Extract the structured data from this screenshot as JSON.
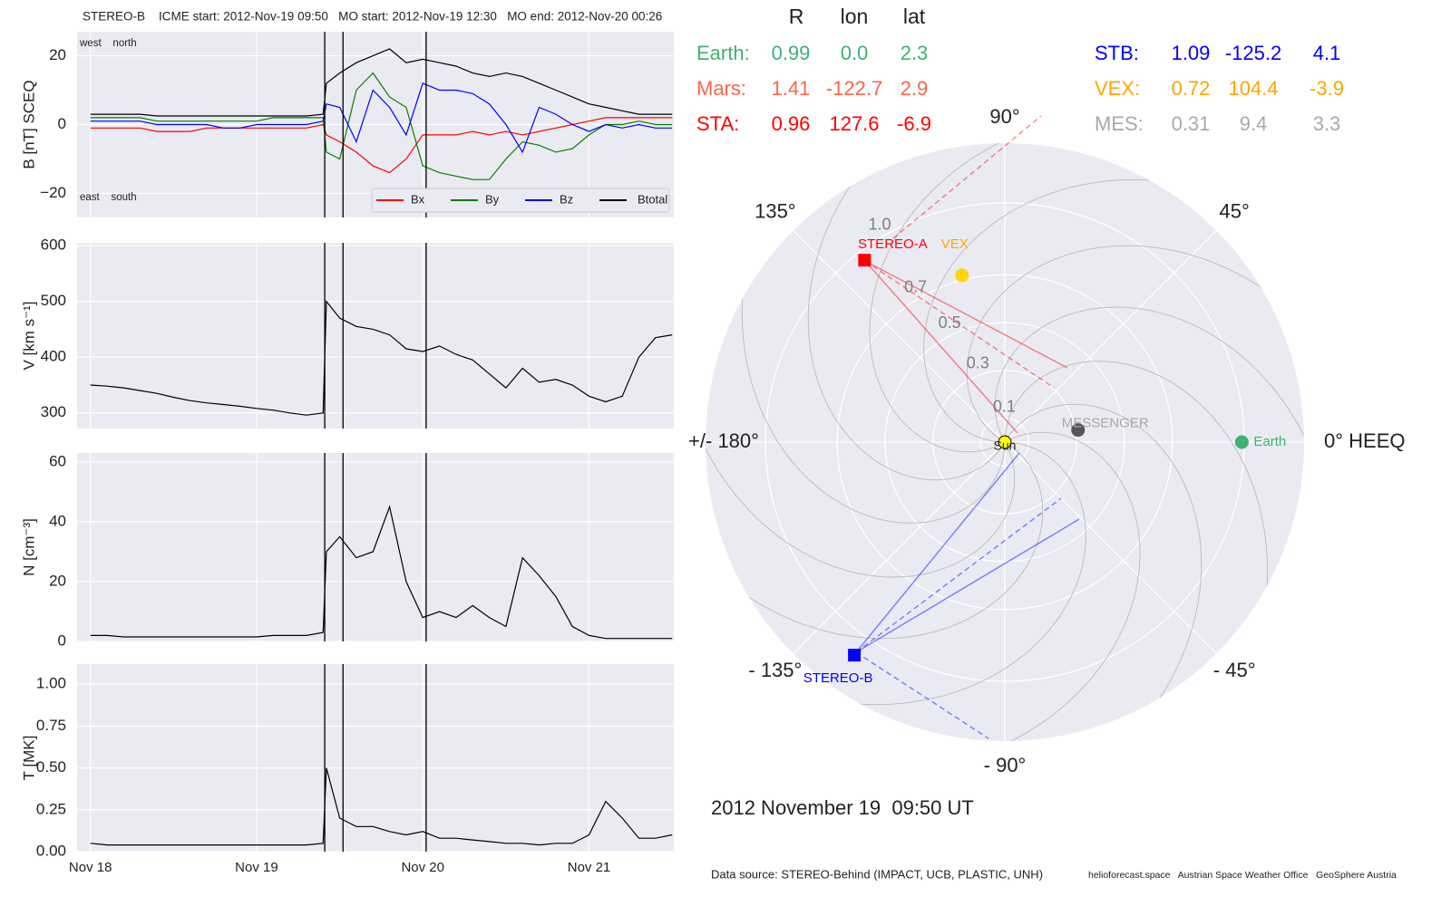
{
  "chart_data": [
    {
      "type": "line",
      "title": "STEREO-B    ICME start: 2012-Nov-19 09:50   MO start: 2012-Nov-19 12:30   MO end: 2012-Nov-20 00:26",
      "ylabel": "B [nT] SCEQ",
      "annotations": [
        "west    north",
        "east    south"
      ],
      "legend": "lower right",
      "grid": true,
      "x": [
        0,
        0.1,
        0.2,
        0.3,
        0.4,
        0.5,
        0.6,
        0.7,
        0.8,
        0.9,
        1,
        1.1,
        1.2,
        1.3,
        1.4,
        1.42,
        1.5,
        1.6,
        1.7,
        1.8,
        1.9,
        2,
        2.1,
        2.2,
        2.3,
        2.4,
        2.5,
        2.6,
        2.7,
        2.8,
        2.9,
        3,
        3.1,
        3.2,
        3.3,
        3.4,
        3.5
      ],
      "series": [
        {
          "name": "Bx",
          "color": "#ff0000",
          "values": [
            -1,
            -1,
            -1,
            -1,
            -2,
            -2,
            -2,
            -1,
            -1,
            -1,
            -1,
            -1,
            -1,
            -1,
            0,
            -3,
            -5,
            -8,
            -12,
            -14,
            -10,
            -3,
            -3,
            -3,
            -2,
            -3,
            -2,
            -3,
            -2,
            -1,
            0,
            1,
            2,
            2,
            2,
            2,
            2
          ]
        },
        {
          "name": "By",
          "color": "#008000",
          "values": [
            2,
            2,
            2,
            2,
            1,
            1,
            1,
            1,
            1,
            1,
            1,
            2,
            2,
            2,
            2,
            -8,
            -10,
            10,
            15,
            8,
            5,
            -12,
            -14,
            -15,
            -16,
            -16,
            -10,
            -5,
            -6,
            -8,
            -7,
            -3,
            0,
            0,
            1,
            0,
            0
          ]
        },
        {
          "name": "Bz",
          "color": "#0000ff",
          "values": [
            1,
            1,
            1,
            1,
            0,
            0,
            0,
            0,
            -1,
            -1,
            0,
            0,
            0,
            0,
            1,
            6,
            5,
            -5,
            10,
            5,
            -3,
            12,
            10,
            10,
            9,
            6,
            0,
            -8,
            5,
            3,
            0,
            -2,
            0,
            -1,
            0,
            -1,
            -1
          ]
        },
        {
          "name": "Btotal",
          "color": "#000000",
          "values": [
            3,
            3,
            3,
            3,
            2.5,
            2.5,
            2.5,
            2.5,
            2.5,
            2.5,
            2.5,
            2.5,
            2.5,
            2.5,
            3,
            12,
            15,
            18,
            20,
            22,
            18,
            19,
            18,
            17,
            15,
            14,
            15,
            14,
            12,
            10,
            8,
            6,
            5,
            4,
            3,
            3,
            3
          ]
        }
      ],
      "xlim": [
        -0.08,
        3.51
      ],
      "xticks": [
        0,
        1,
        2,
        3
      ],
      "ylim": [
        -27,
        27
      ],
      "yticks": [
        {
          "value": -20,
          "label": "−20"
        },
        0,
        20
      ],
      "vlines": [
        1.41,
        1.52,
        2.02
      ]
    },
    {
      "type": "line",
      "ylabel": "V [km s⁻¹]",
      "grid": true,
      "color": "#000000",
      "x": [
        0,
        0.1,
        0.2,
        0.3,
        0.4,
        0.5,
        0.6,
        0.7,
        0.8,
        0.9,
        1,
        1.1,
        1.2,
        1.3,
        1.4,
        1.42,
        1.5,
        1.6,
        1.7,
        1.8,
        1.9,
        2,
        2.1,
        2.2,
        2.3,
        2.4,
        2.5,
        2.6,
        2.7,
        2.8,
        2.9,
        3,
        3.1,
        3.2,
        3.3,
        3.4,
        3.5
      ],
      "values": [
        350,
        348,
        345,
        340,
        335,
        328,
        322,
        318,
        315,
        312,
        308,
        305,
        300,
        296,
        300,
        500,
        470,
        455,
        450,
        440,
        415,
        410,
        420,
        405,
        395,
        370,
        345,
        380,
        355,
        360,
        350,
        330,
        320,
        330,
        400,
        435,
        440
      ],
      "xlim": [
        -0.08,
        3.51
      ],
      "xticks": [
        0,
        1,
        2,
        3
      ],
      "ylim": [
        272,
        605
      ],
      "yticks": [
        300,
        400,
        500,
        600
      ],
      "vlines": [
        1.41,
        1.52,
        2.02
      ]
    },
    {
      "type": "line",
      "ylabel": "N [cm⁻³]",
      "grid": true,
      "color": "#000000",
      "x": [
        0,
        0.1,
        0.2,
        0.3,
        0.4,
        0.5,
        0.6,
        0.7,
        0.8,
        0.9,
        1,
        1.1,
        1.2,
        1.3,
        1.4,
        1.42,
        1.5,
        1.6,
        1.7,
        1.8,
        1.9,
        2,
        2.1,
        2.2,
        2.3,
        2.4,
        2.5,
        2.6,
        2.7,
        2.8,
        2.9,
        3,
        3.1,
        3.2,
        3.3,
        3.4,
        3.5
      ],
      "values": [
        2,
        2,
        1.5,
        1.5,
        1.5,
        1.5,
        1.5,
        1.5,
        1.5,
        1.5,
        1.5,
        2,
        2,
        2,
        3,
        30,
        35,
        28,
        30,
        45,
        20,
        8,
        10,
        8,
        12,
        8,
        5,
        28,
        22,
        15,
        5,
        2,
        1,
        1,
        1,
        1,
        1
      ],
      "xlim": [
        -0.08,
        3.51
      ],
      "xticks": [
        0,
        1,
        2,
        3
      ],
      "ylim": [
        0,
        63
      ],
      "yticks": [
        0,
        20,
        40,
        60
      ],
      "vlines": [
        1.41,
        1.52,
        2.02
      ]
    },
    {
      "type": "line",
      "ylabel": "T [MK]",
      "grid": true,
      "color": "#000000",
      "x": [
        0,
        0.1,
        0.2,
        0.3,
        0.4,
        0.5,
        0.6,
        0.7,
        0.8,
        0.9,
        1,
        1.1,
        1.2,
        1.3,
        1.4,
        1.42,
        1.5,
        1.6,
        1.7,
        1.8,
        1.9,
        2,
        2.1,
        2.2,
        2.3,
        2.4,
        2.5,
        2.6,
        2.7,
        2.8,
        2.9,
        3,
        3.1,
        3.2,
        3.3,
        3.4,
        3.5
      ],
      "values": [
        0.05,
        0.04,
        0.04,
        0.04,
        0.04,
        0.04,
        0.04,
        0.04,
        0.04,
        0.04,
        0.04,
        0.04,
        0.04,
        0.04,
        0.05,
        0.5,
        0.2,
        0.15,
        0.15,
        0.12,
        0.1,
        0.12,
        0.08,
        0.08,
        0.07,
        0.06,
        0.05,
        0.05,
        0.04,
        0.05,
        0.05,
        0.1,
        0.3,
        0.2,
        0.08,
        0.08,
        0.1
      ],
      "xlim": [
        -0.08,
        3.51
      ],
      "xticks": [
        {
          "value": 0,
          "label": "Nov 18"
        },
        {
          "value": 1,
          "label": "Nov 19"
        },
        {
          "value": 2,
          "label": "Nov 20"
        },
        {
          "value": 3,
          "label": "Nov 21"
        }
      ],
      "ylim": [
        0,
        1.12
      ],
      "yticks": [
        {
          "value": 0,
          "label": "0.00"
        },
        {
          "value": 0.25,
          "label": "0.25"
        },
        {
          "value": 0.5,
          "label": "0.50"
        },
        {
          "value": 0.75,
          "label": "0.75"
        },
        {
          "value": 1,
          "label": "1.00"
        }
      ],
      "vlines": [
        1.41,
        1.52,
        2.02
      ]
    },
    {
      "type": "polar",
      "title": "2012 November 19  09:50 UT",
      "columns": [
        "R",
        "lon",
        "lat"
      ],
      "sun_label": "Sun",
      "rlim": [
        0,
        1.25
      ],
      "rticks": [
        0.1,
        0.3,
        0.5,
        0.7,
        {
          "value": 1,
          "label": "1.0"
        }
      ],
      "thetaticks": [
        {
          "value": 0,
          "label": "0° HEEQ"
        },
        {
          "value": 45,
          "label": "45°"
        },
        {
          "value": 90,
          "label": "90°"
        },
        {
          "value": 135,
          "label": "135°"
        },
        {
          "value": 180,
          "label": "+/- 180°"
        },
        {
          "value": -135,
          "label": "- 135°"
        },
        {
          "value": -90,
          "label": "- 90°"
        },
        {
          "value": -45,
          "label": "- 45°"
        }
      ],
      "bodies": [
        {
          "label": "Earth:",
          "plot_label": "Earth",
          "color": "#3cb371",
          "marker_color": "#3cb371",
          "marker": "circle",
          "values": [
            0.99,
            0,
            2.3
          ],
          "value_labels": [
            "0.99",
            "0.0",
            "2.3"
          ]
        },
        {
          "label": "Mars:",
          "color": "#ff6347",
          "marker_color": "#ff6347",
          "marker": "circle",
          "values": [
            1.41,
            -122.7,
            2.9
          ],
          "value_labels": [
            "1.41",
            "-122.7",
            "2.9"
          ]
        },
        {
          "label": "STA:",
          "plot_label": "STEREO-A",
          "color": "#ff0000",
          "marker_color": "#ff0000",
          "marker": "square",
          "values": [
            0.96,
            127.6,
            -6.9
          ],
          "value_labels": [
            "0.96",
            "127.6",
            "-6.9"
          ]
        },
        {
          "label": "STB:",
          "plot_label": "STEREO-B",
          "color": "#0000ff",
          "marker_color": "#0000ff",
          "marker": "square",
          "values": [
            1.09,
            -125.2,
            4.1
          ],
          "value_labels": [
            "1.09",
            "-125.2",
            "4.1"
          ]
        },
        {
          "label": "VEX:",
          "plot_label": "VEX",
          "color": "#ffa500",
          "marker_color": "#ffd700",
          "marker": "circle",
          "values": [
            0.72,
            104.4,
            -3.9
          ],
          "value_labels": [
            "0.72",
            "104.4",
            "-3.9"
          ]
        },
        {
          "label": "MES:",
          "plot_label": "MESSENGER",
          "color": "#a9a9a9",
          "marker_color": "#555555",
          "marker": "circle",
          "values": [
            0.31,
            9.4,
            3.3
          ],
          "value_labels": [
            "0.31",
            "9.4",
            "3.3"
          ]
        }
      ]
    }
  ],
  "footer": {
    "source": "Data source: STEREO-Behind (IMPACT, UCB, PLASTIC, UNH)",
    "credits": "helioforecast.space   Austrian Space Weather Office   GeoSphere Austria"
  }
}
